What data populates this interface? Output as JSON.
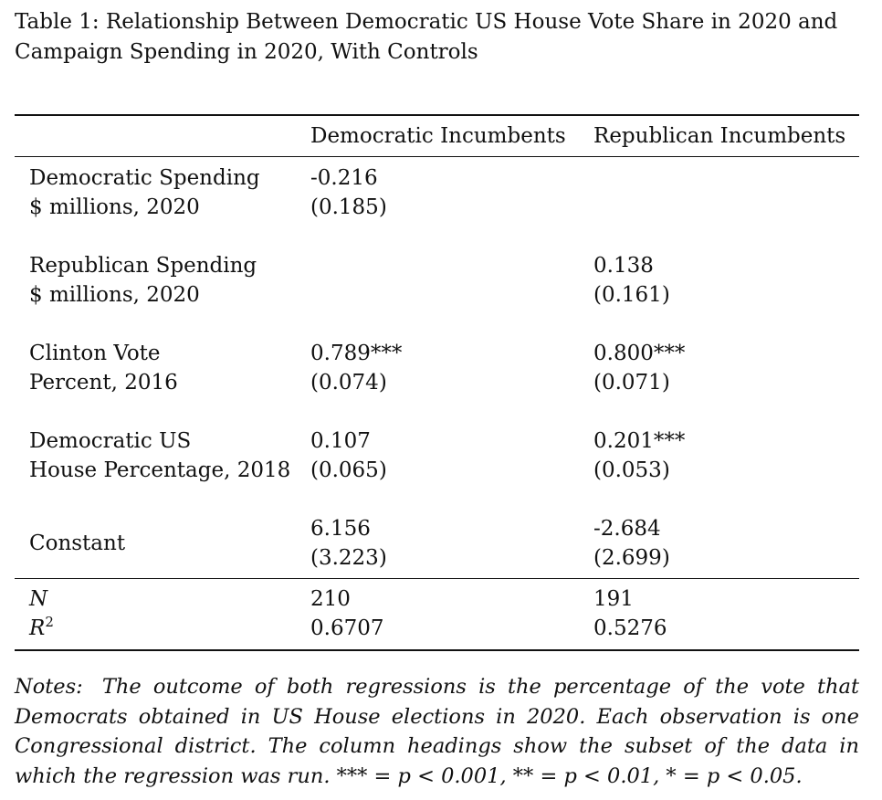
{
  "caption": "Table 1: Relationship Between Democratic US House Vote Share in 2020 and Campaign Spending in 2020, With Controls",
  "columns": [
    "Democratic Incumbents",
    "Republican Incumbents"
  ],
  "rows": [
    {
      "label1": "Democratic Spending",
      "label2": "$ millions, 2020",
      "c1_coef": "-0.216",
      "c1_se": "(0.185)",
      "c2_coef": "",
      "c2_se": ""
    },
    {
      "label1": "Republican Spending",
      "label2": "$ millions, 2020",
      "c1_coef": "",
      "c1_se": "",
      "c2_coef": "0.138",
      "c2_se": "(0.161)"
    },
    {
      "label1": "Clinton Vote",
      "label2": "Percent, 2016",
      "c1_coef": "0.789***",
      "c1_se": "(0.074)",
      "c2_coef": "0.800***",
      "c2_se": "(0.071)"
    },
    {
      "label1": "Democratic US",
      "label2": "House Percentage, 2018",
      "c1_coef": "0.107",
      "c1_se": "(0.065)",
      "c2_coef": "0.201***",
      "c2_se": "(0.053)"
    },
    {
      "label1": "Constant",
      "label2": "",
      "c1_coef": "6.156",
      "c1_se": "(3.223)",
      "c2_coef": "-2.684",
      "c2_se": "(2.699)"
    }
  ],
  "stats": {
    "n_label": "N",
    "r2_label": "R",
    "r2_sup": "2",
    "n": [
      "210",
      "191"
    ],
    "r2": [
      "0.6707",
      "0.5276"
    ]
  },
  "notes": {
    "label": "Notes:",
    "text": "The outcome of both regressions is the percentage of the vote that Democrats obtained in US House elections in 2020. Each observation is one Congressional district. The column headings show the subset of the data in which the regression was run. *** = p < 0.001, ** = p < 0.01, * = p < 0.05."
  }
}
